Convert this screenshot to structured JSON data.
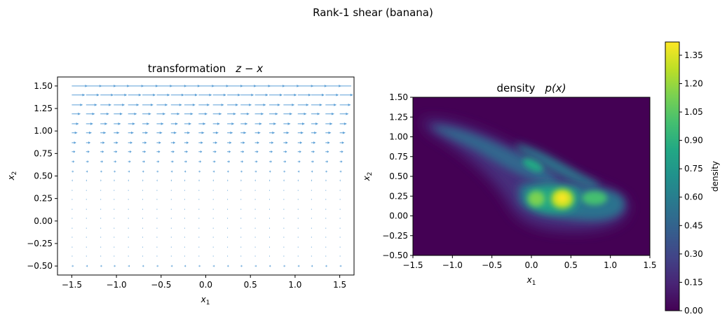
{
  "figure": {
    "suptitle": "Rank-1 shear (banana)"
  },
  "chart_data": [
    {
      "type": "quiver",
      "title_prefix": "transformation",
      "title_math": "z − x",
      "xlabel": "x",
      "xlabel_sub": "1",
      "ylabel": "x",
      "ylabel_sub": "2",
      "xlim": [
        -1.66,
        1.66
      ],
      "ylim": [
        -0.6,
        1.6
      ],
      "xticks": [
        -1.5,
        -1.0,
        -0.5,
        0.0,
        0.5,
        1.0,
        1.5
      ],
      "xtick_labels": [
        "−1.5",
        "−1.0",
        "−0.5",
        "0.0",
        "0.5",
        "1.0",
        "1.5"
      ],
      "yticks": [
        -0.5,
        -0.25,
        0.0,
        0.25,
        0.5,
        0.75,
        1.0,
        1.25,
        1.5
      ],
      "ytick_labels": [
        "−0.50",
        "−0.25",
        "0.00",
        "0.25",
        "0.50",
        "0.75",
        "1.00",
        "1.25",
        "1.50"
      ],
      "grid": false,
      "arrow_color": "#5b9fd6",
      "arrow_rows": [
        {
          "y": 1.5,
          "dx": 0.18
        },
        {
          "y": 1.4,
          "dx": 0.15
        },
        {
          "y": 1.29,
          "dx": 0.125
        },
        {
          "y": 1.19,
          "dx": 0.1
        },
        {
          "y": 1.08,
          "dx": 0.08
        },
        {
          "y": 0.98,
          "dx": 0.065
        },
        {
          "y": 0.87,
          "dx": 0.05
        },
        {
          "y": 0.77,
          "dx": 0.04
        },
        {
          "y": 0.66,
          "dx": 0.03
        },
        {
          "y": 0.55,
          "dx": 0.02
        },
        {
          "y": 0.45,
          "dx": 0.01
        },
        {
          "y": 0.34,
          "dx": 0.005
        },
        {
          "y": 0.24,
          "dx": 0.002
        },
        {
          "y": 0.13,
          "dx": 0.002
        },
        {
          "y": 0.03,
          "dx": 0.002
        },
        {
          "y": -0.08,
          "dx": 0.002
        },
        {
          "y": -0.18,
          "dx": 0.002
        },
        {
          "y": -0.29,
          "dx": 0.004
        },
        {
          "y": -0.39,
          "dx": 0.007
        },
        {
          "y": -0.5,
          "dx": 0.02
        }
      ],
      "arrow_x": [
        -1.5,
        -1.34,
        -1.18,
        -1.03,
        -0.87,
        -0.71,
        -0.55,
        -0.39,
        -0.24,
        -0.08,
        0.08,
        0.24,
        0.39,
        0.55,
        0.71,
        0.87,
        1.03,
        1.18,
        1.34,
        1.5
      ]
    },
    {
      "type": "heatmap",
      "title_prefix": "density",
      "title_math": "p(x)",
      "xlabel": "x",
      "xlabel_sub": "1",
      "ylabel": "x",
      "ylabel_sub": "2",
      "xlim": [
        -1.5,
        1.5
      ],
      "ylim": [
        -0.5,
        1.5
      ],
      "xticks": [
        -1.5,
        -1.0,
        -0.5,
        0.0,
        0.5,
        1.0,
        1.5
      ],
      "xtick_labels": [
        "−1.5",
        "−1.0",
        "−0.5",
        "0.0",
        "0.5",
        "1.0",
        "1.5"
      ],
      "yticks": [
        -0.5,
        -0.25,
        0.0,
        0.25,
        0.5,
        0.75,
        1.0,
        1.25,
        1.5
      ],
      "ytick_labels": [
        "−0.50",
        "−0.25",
        "0.00",
        "0.25",
        "0.50",
        "0.75",
        "1.00",
        "1.25",
        "1.50"
      ],
      "colormap": "viridis",
      "colorbar_label": "density",
      "colorbar_range": [
        0.0,
        1.42
      ],
      "colorbar_ticks": [
        0.0,
        0.15,
        0.3,
        0.45,
        0.6,
        0.75,
        0.9,
        1.05,
        1.2,
        1.35
      ],
      "colorbar_tick_labels": [
        "0.00",
        "0.15",
        "0.30",
        "0.45",
        "0.60",
        "0.75",
        "0.90",
        "1.05",
        "1.20",
        "1.35"
      ],
      "peak_density": 1.42,
      "peak_location": [
        0.35,
        0.22
      ]
    }
  ]
}
